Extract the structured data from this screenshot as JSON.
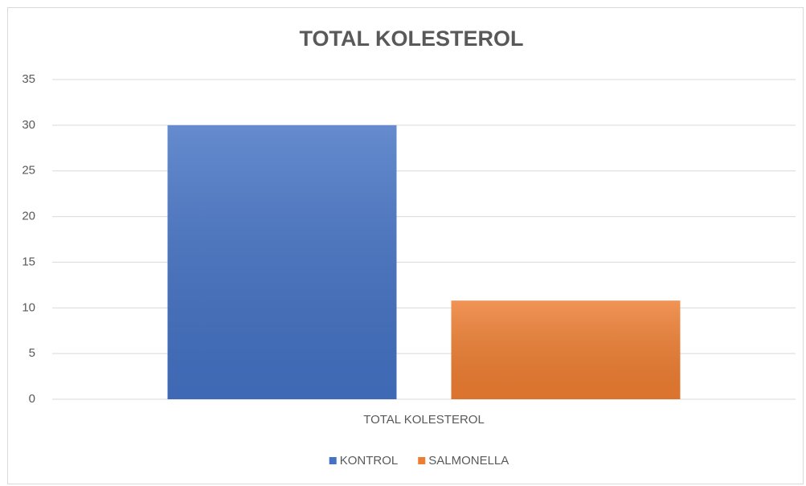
{
  "chart_data": {
    "type": "bar",
    "title": "TOTAL KOLESTEROL",
    "categories": [
      "TOTAL KOLESTEROL"
    ],
    "series": [
      {
        "name": "KONTROL",
        "color": "#4472c4",
        "values": [
          30
        ]
      },
      {
        "name": "SALMONELLA",
        "color": "#ed7d31",
        "values": [
          10.8
        ]
      }
    ],
    "ylim": [
      0,
      35
    ],
    "yticks": [
      0,
      5,
      10,
      15,
      20,
      25,
      30,
      35
    ],
    "grid": true,
    "legend": "bottom"
  }
}
